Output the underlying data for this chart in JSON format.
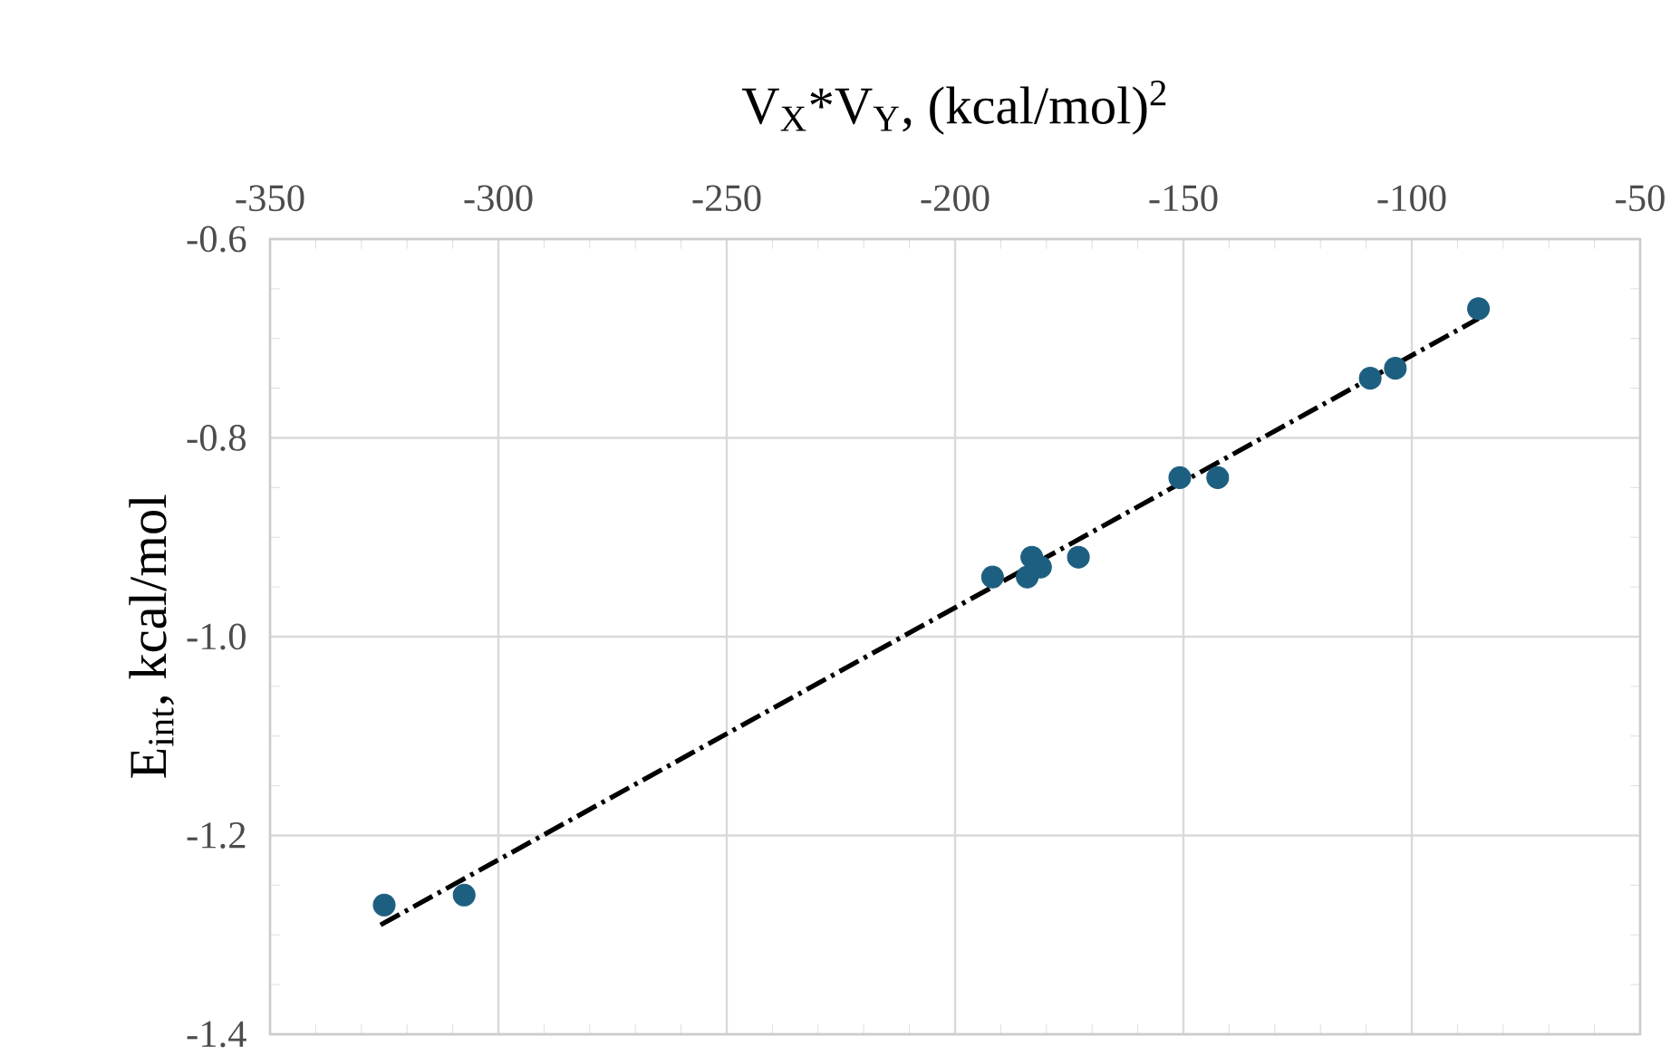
{
  "chart_data": {
    "type": "scatter",
    "xlabel": "V$_{X}$*V$_{Y}$, (kcal/mol)$^{2}$",
    "ylabel": "E$_{int}$, kcal/mol",
    "xlim": [
      -350,
      -50
    ],
    "ylim": [
      -1.4,
      -0.6
    ],
    "xticks": [
      -350,
      -300,
      -250,
      -200,
      -150,
      -100,
      -50
    ],
    "yticks": [
      {
        "value": -1.4,
        "label": "-1.4"
      },
      {
        "value": -1.2,
        "label": "-1.2"
      },
      {
        "value": -1.0,
        "label": "-1.0"
      },
      {
        "value": -0.8,
        "label": "-0.8"
      },
      {
        "value": -0.6,
        "label": "-0.6"
      }
    ],
    "grid": true,
    "marker": "circle",
    "series": [
      {
        "color": "#1d5f80",
        "x": [
          -325,
          -307.5,
          -191.8,
          -184.2,
          -183.2,
          -181.3,
          -173,
          -150.8,
          -142.5,
          -109.1,
          -103.6,
          -85.4
        ],
        "values": [
          -1.27,
          -1.26,
          -0.94,
          -0.94,
          -0.92,
          -0.93,
          -0.92,
          -0.84,
          -0.84,
          -0.74,
          -0.73,
          -0.67
        ]
      },
      {
        "type": "line",
        "color": "#000000",
        "line_style": "dashed",
        "marker": "none",
        "x": [
          -325.8,
          -85.4
        ],
        "values": [
          -1.29,
          -0.68
        ]
      }
    ]
  }
}
